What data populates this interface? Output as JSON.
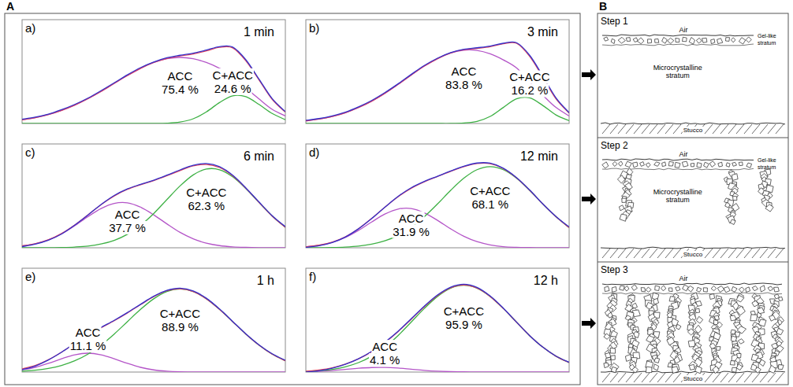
{
  "panel_labels": [
    "A",
    "B"
  ],
  "chart_data": [
    {
      "type": "line",
      "panel": "a)",
      "title": "1 min",
      "xlim": [
        0,
        100
      ],
      "ylim": [
        0,
        110
      ],
      "tick_labels": false,
      "grid": false,
      "x": [
        0,
        5,
        10,
        15,
        20,
        25,
        30,
        35,
        40,
        45,
        50,
        55,
        60,
        65,
        70,
        75,
        80,
        85,
        90,
        95,
        100
      ],
      "series": [
        {
          "color": "#b455c8",
          "name": "ACC",
          "label": "75.4 %",
          "values": [
            3.9,
            6.2,
            9.5,
            13.9,
            19.5,
            26.3,
            34,
            42.5,
            50.8,
            58.5,
            64.6,
            68.6,
            70,
            68.6,
            64.6,
            58.5,
            50.8,
            38,
            26,
            15,
            8
          ]
        },
        {
          "color": "#3cb043",
          "name": "C+ACC",
          "label": "24.6 %",
          "values": [
            0,
            0,
            0,
            0,
            0,
            0,
            0,
            0,
            0,
            0,
            0.1,
            0.3,
            1.5,
            5,
            12.3,
            22.2,
            29.3,
            28.4,
            20.2,
            10.6,
            4
          ]
        },
        {
          "color": "#e0405a",
          "values": [
            3.9,
            6.2,
            9.5,
            13.9,
            19.5,
            26.3,
            34,
            42.5,
            50.8,
            58.5,
            64.7,
            68.9,
            71.5,
            73.6,
            76.9,
            80.7,
            80.1,
            66.4,
            46.2,
            25.6,
            12
          ]
        },
        {
          "color": "#3333cc",
          "values": [
            4.5,
            6.8,
            9.9,
            14.6,
            20.2,
            26.9,
            34.8,
            43.1,
            51.6,
            59.2,
            65.1,
            69.6,
            72.3,
            74.5,
            77.8,
            81.4,
            80.9,
            67.5,
            47,
            26.3,
            12.6
          ]
        }
      ]
    },
    {
      "type": "line",
      "panel": "b)",
      "title": "3 min",
      "xlim": [
        0,
        100
      ],
      "ylim": [
        0,
        110
      ],
      "tick_labels": false,
      "grid": false,
      "x": [
        0,
        5,
        10,
        15,
        20,
        25,
        30,
        35,
        40,
        45,
        50,
        55,
        60,
        65,
        70,
        75,
        80,
        85,
        90,
        95,
        100
      ],
      "series": [
        {
          "color": "#b455c8",
          "name": "ACC",
          "label": "83.8 %",
          "values": [
            2.8,
            4.6,
            7.4,
            11.4,
            16.9,
            23.7,
            32,
            41.4,
            51.3,
            60.8,
            68.7,
            74.7,
            77.7,
            77.4,
            73.8,
            67.4,
            58.9,
            44,
            30,
            17,
            8
          ]
        },
        {
          "color": "#3cb043",
          "name": "C+ACC",
          "label": "16.2 %",
          "values": [
            0,
            0,
            0,
            0,
            0,
            0,
            0,
            0,
            0,
            0,
            0,
            0,
            0.5,
            2.2,
            7.5,
            17,
            26.1,
            27.1,
            19.1,
            9.1,
            2.9
          ]
        },
        {
          "color": "#e0405a",
          "values": [
            2.8,
            4.6,
            7.4,
            11.4,
            16.9,
            23.7,
            32,
            41.4,
            51.3,
            60.8,
            68.7,
            74.7,
            78.2,
            79.6,
            81.3,
            84.4,
            85,
            71.1,
            49.1,
            26.1,
            10.9
          ]
        },
        {
          "color": "#3333cc",
          "values": [
            3.4,
            5.2,
            8.1,
            12,
            17.6,
            24.4,
            32.7,
            42,
            52,
            61.5,
            69.2,
            75.1,
            78.6,
            80.2,
            82,
            85,
            85.6,
            72.3,
            50.4,
            27.2,
            11.5
          ]
        }
      ]
    },
    {
      "type": "line",
      "panel": "c)",
      "title": "6 min",
      "xlim": [
        0,
        100
      ],
      "ylim": [
        0,
        110
      ],
      "tick_labels": false,
      "grid": false,
      "x": [
        0,
        5,
        10,
        15,
        20,
        25,
        30,
        35,
        40,
        45,
        50,
        55,
        60,
        65,
        70,
        75,
        80,
        85,
        90,
        95,
        100
      ],
      "series": [
        {
          "color": "#b455c8",
          "name": "ACC",
          "label": "37.7 %",
          "values": [
            1.9,
            4.3,
            8.4,
            14.8,
            23.4,
            33,
            41.6,
            47,
            47.6,
            43,
            34.9,
            25.3,
            16.3,
            9.5,
            4.9,
            2.3,
            1,
            0.4,
            0.1,
            0,
            0
          ]
        },
        {
          "color": "#3cb043",
          "name": "C+ACC",
          "label": "62.3 %",
          "values": [
            0,
            0,
            0,
            0.3,
            0.8,
            1.8,
            4,
            7.9,
            14.3,
            23.8,
            36.3,
            51,
            65.5,
            77.2,
            83.4,
            82.7,
            75.2,
            62.7,
            48,
            33.6,
            21.7
          ]
        },
        {
          "color": "#e0405a",
          "values": [
            1.9,
            4.3,
            8.4,
            15.1,
            24.2,
            34.8,
            45.6,
            54.9,
            61.9,
            66.8,
            71.2,
            76.3,
            81.8,
            86.7,
            88.3,
            85,
            76.2,
            63.1,
            48.1,
            33.6,
            21.7
          ]
        },
        {
          "color": "#3333cc",
          "values": [
            1.2,
            3.8,
            8,
            14.6,
            23.9,
            34.6,
            45.8,
            55.4,
            62.4,
            67.2,
            71.6,
            76.9,
            82.5,
            87.4,
            89.2,
            85.9,
            76.8,
            63.4,
            48.5,
            34,
            22.3
          ]
        }
      ]
    },
    {
      "type": "line",
      "panel": "d)",
      "title": "12 min",
      "xlim": [
        0,
        100
      ],
      "ylim": [
        0,
        110
      ],
      "tick_labels": false,
      "grid": false,
      "x": [
        0,
        5,
        10,
        15,
        20,
        25,
        30,
        35,
        40,
        45,
        50,
        55,
        60,
        65,
        70,
        75,
        80,
        85,
        90,
        95,
        100
      ],
      "series": [
        {
          "color": "#b455c8",
          "name": "ACC",
          "label": "31.9 %",
          "values": [
            1.1,
            2.6,
            5.7,
            10.9,
            18.4,
            27.3,
            35.7,
            41,
            41.6,
            37,
            29.1,
            20.1,
            12.2,
            6.5,
            3.1,
            1.2,
            0.5,
            0.2,
            0,
            0,
            0
          ]
        },
        {
          "color": "#3cb043",
          "name": "C+ACC",
          "label": "68.1 %",
          "values": [
            0,
            0.1,
            0.3,
            0.8,
            1.8,
            3.8,
            7.3,
            13,
            21.4,
            32.9,
            46.4,
            60.8,
            73.7,
            82.7,
            86,
            82.7,
            73.7,
            60.8,
            46.4,
            32.9,
            21.4
          ]
        },
        {
          "color": "#e0405a",
          "values": [
            1.1,
            2.7,
            6,
            11.7,
            20.2,
            31.1,
            43,
            54,
            63,
            69.9,
            75.5,
            80.9,
            85.9,
            89.2,
            89.1,
            83.9,
            74.2,
            61,
            46.4,
            32.9,
            21.4
          ]
        },
        {
          "color": "#3333cc",
          "values": [
            0.5,
            2.2,
            5.6,
            11.4,
            20.1,
            31,
            42.9,
            54.4,
            63.5,
            70.3,
            75.8,
            81.3,
            86.4,
            89.8,
            89.6,
            84.3,
            74.4,
            61.2,
            46.5,
            33.2,
            22
          ]
        }
      ]
    },
    {
      "type": "line",
      "panel": "e)",
      "title": "1 h",
      "xlim": [
        0,
        100
      ],
      "ylim": [
        0,
        110
      ],
      "tick_labels": false,
      "grid": false,
      "x": [
        0,
        5,
        10,
        15,
        20,
        25,
        30,
        35,
        40,
        45,
        50,
        55,
        60,
        65,
        70,
        75,
        80,
        85,
        90,
        95,
        100
      ],
      "series": [
        {
          "color": "#b455c8",
          "name": "ACC",
          "label": "11.1 %",
          "values": [
            2.3,
            5,
            9.2,
            14.1,
            18.3,
            20,
            18.3,
            14.1,
            9.2,
            5,
            2.3,
            0.9,
            0.3,
            0.1,
            0,
            0,
            0,
            0,
            0,
            0,
            0
          ]
        },
        {
          "color": "#3cb043",
          "name": "C+ACC",
          "label": "88.9 %",
          "values": [
            1,
            2,
            3.9,
            7,
            11.9,
            19,
            28.6,
            40.3,
            53.4,
            66.4,
            77.6,
            85.3,
            88,
            85.3,
            77.6,
            66.4,
            53.4,
            40.3,
            28.6,
            19,
            11.9
          ]
        },
        {
          "color": "#e0405a",
          "values": [
            3.3,
            7,
            13.1,
            21.1,
            30.2,
            39,
            46.9,
            54.4,
            62.6,
            71.4,
            79.9,
            86.2,
            88.3,
            85.4,
            77.6,
            66.4,
            53.4,
            40.3,
            28.6,
            19,
            11.9
          ]
        },
        {
          "color": "#3333cc",
          "values": [
            2.5,
            6.4,
            12.8,
            21,
            30.4,
            39.4,
            47.3,
            54.8,
            63,
            71.8,
            80.3,
            86.6,
            88.9,
            86,
            78.2,
            66.8,
            53.6,
            40.4,
            28.8,
            19.4,
            12.5
          ]
        }
      ]
    },
    {
      "type": "line",
      "panel": "f)",
      "title": "12 h",
      "xlim": [
        0,
        100
      ],
      "ylim": [
        0,
        110
      ],
      "tick_labels": false,
      "grid": false,
      "x": [
        0,
        5,
        10,
        15,
        20,
        25,
        30,
        35,
        40,
        45,
        50,
        55,
        60,
        65,
        70,
        75,
        80,
        85,
        90,
        95,
        100
      ],
      "series": [
        {
          "color": "#b455c8",
          "name": "ACC",
          "label": "4.1 %",
          "values": [
            0.3,
            0.8,
            1.6,
            2.8,
            4,
            4.8,
            4.9,
            4.2,
            3,
            1.8,
            0.9,
            0.4,
            0.2,
            0.1,
            0,
            0,
            0,
            0,
            0,
            0,
            0
          ]
        },
        {
          "color": "#3cb043",
          "name": "C+ACC",
          "label": "95.9 %",
          "values": [
            0.6,
            1.4,
            2.9,
            5.6,
            10,
            16.8,
            26.4,
            38.6,
            52.9,
            67.4,
            80.1,
            88.9,
            92,
            88.9,
            80.1,
            67.4,
            52.9,
            38.6,
            26.4,
            16.8,
            10
          ]
        },
        {
          "color": "#e0405a",
          "values": [
            0.9,
            2.2,
            4.5,
            8.4,
            14,
            21.6,
            31.3,
            42.8,
            55.9,
            69.2,
            81,
            89.3,
            92.2,
            89,
            80.1,
            67.4,
            52.9,
            38.6,
            26.4,
            16.8,
            10
          ]
        },
        {
          "color": "#3333cc",
          "values": [
            0,
            1.4,
            4,
            8.2,
            14.1,
            21.9,
            31.7,
            43.2,
            56.4,
            69.8,
            81.6,
            89.9,
            93,
            89.7,
            80.6,
            67.7,
            53,
            38.6,
            26.4,
            16.9,
            10.4
          ]
        }
      ]
    }
  ],
  "diagram": {
    "steps": [
      {
        "title": "Step 1",
        "air": "Air",
        "gel": "Gel-like stratum",
        "middle": "Microcrystalline stratum",
        "base": "Stucco"
      },
      {
        "title": "Step 2",
        "air": "Air",
        "gel": "Gel-like stratum",
        "middle": "Microcrystalline stratum",
        "base": "Stucco"
      },
      {
        "title": "Step 3",
        "air": "Air",
        "base": "Stucco"
      }
    ]
  }
}
